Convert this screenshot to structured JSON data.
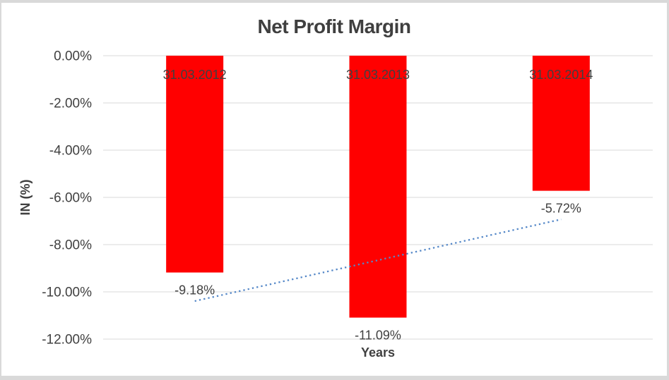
{
  "chart_data": {
    "type": "bar",
    "title": "Net Profit Margin",
    "categories": [
      "31.03.2012",
      "31.03.2013",
      "31.03.2014"
    ],
    "values": [
      -9.18,
      -11.09,
      -5.72
    ],
    "data_labels": [
      "-9.18%",
      "-11.09%",
      "-5.72%"
    ],
    "xlabel": "Years",
    "ylabel": "IN (%)",
    "ylim": [
      -12,
      0
    ],
    "ytick_step": 2,
    "ytick_labels": [
      "0.00%",
      "-2.00%",
      "-4.00%",
      "-6.00%",
      "-8.00%",
      "-10.00%",
      "-12.00%"
    ],
    "grid": true,
    "legend": "none",
    "bar_color": "#FF0000",
    "text_color": "#404040",
    "gridline_color": "#D9D9D9",
    "trendline": {
      "type": "linear",
      "style": "dotted",
      "color": "#5588C8",
      "start_value": -10.39,
      "end_value": -6.93
    }
  }
}
